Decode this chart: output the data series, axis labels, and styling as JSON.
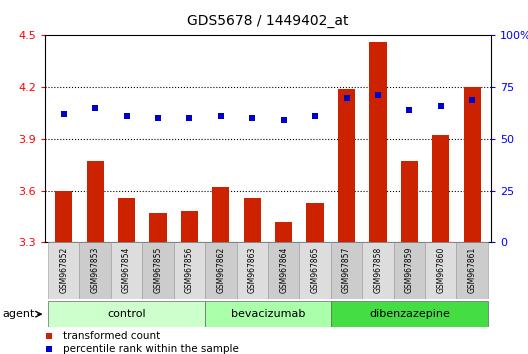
{
  "title": "GDS5678 / 1449402_at",
  "samples": [
    "GSM967852",
    "GSM967853",
    "GSM967854",
    "GSM967855",
    "GSM967856",
    "GSM967862",
    "GSM967863",
    "GSM967864",
    "GSM967865",
    "GSM967857",
    "GSM967858",
    "GSM967859",
    "GSM967860",
    "GSM967861"
  ],
  "bar_values": [
    3.6,
    3.77,
    3.56,
    3.47,
    3.48,
    3.62,
    3.56,
    3.42,
    3.53,
    4.19,
    4.46,
    3.77,
    3.92,
    4.2
  ],
  "dot_values": [
    62,
    65,
    61,
    60,
    60,
    61,
    60,
    59,
    61,
    70,
    71,
    64,
    66,
    69
  ],
  "bar_color": "#cc2200",
  "dot_color": "#0000cc",
  "groups": [
    {
      "label": "control",
      "start": 0,
      "end": 5,
      "color": "#ccffcc"
    },
    {
      "label": "bevacizumab",
      "start": 5,
      "end": 9,
      "color": "#aaffaa"
    },
    {
      "label": "dibenzazepine",
      "start": 9,
      "end": 14,
      "color": "#44dd44"
    }
  ],
  "ylim_left": [
    3.3,
    4.5
  ],
  "ymin": 3.3,
  "ylim_right": [
    0,
    100
  ],
  "yticks_left": [
    3.3,
    3.6,
    3.9,
    4.2,
    4.5
  ],
  "yticks_right": [
    0,
    25,
    50,
    75,
    100
  ],
  "ytick_labels_right": [
    "0",
    "25",
    "50",
    "75",
    "100%"
  ],
  "grid_values": [
    3.6,
    3.9,
    4.2
  ],
  "agent_label": "agent",
  "legend_bar": "transformed count",
  "legend_dot": "percentile rank within the sample",
  "bg_color": "#ffffff",
  "tick_cell_colors": [
    "#dddddd",
    "#cccccc"
  ]
}
